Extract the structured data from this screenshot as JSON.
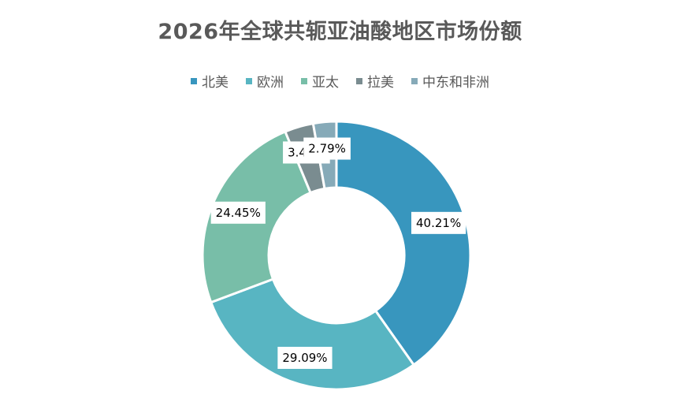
{
  "chart_data": {
    "type": "pie",
    "donut": true,
    "title": "2026年全球共轭亚油酸地区市场份额",
    "legend_position": "top",
    "categories": [
      "北美",
      "欧洲",
      "亚太",
      "拉美",
      "中东和非洲"
    ],
    "values": [
      40.21,
      29.09,
      24.45,
      3.46,
      2.79
    ],
    "labels": [
      "40.21%",
      "29.09%",
      "24.45%",
      "3.46%",
      "2.79%"
    ],
    "colors": [
      "#3896BE",
      "#58B5C2",
      "#78BEA8",
      "#7A8C90",
      "#86AAB8"
    ]
  }
}
